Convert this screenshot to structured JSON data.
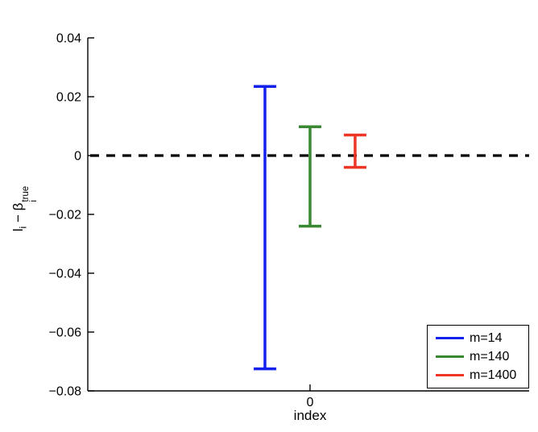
{
  "figure": {
    "background": "#ffffff",
    "axis_color": "#000000",
    "xlabel": "index",
    "ylabel_parts": {
      "lhs_base": "l",
      "lhs_sub": "i",
      "minus": " − ",
      "rhs_base": "β",
      "rhs_sup": "true",
      "rhs_sub": "i"
    }
  },
  "chart_data": {
    "type": "errorbar",
    "title": "",
    "xlabel": "index",
    "ylabel": "l_i − β_i^true",
    "xlim": [
      -0.493,
      0.486
    ],
    "ylim": [
      -0.08,
      0.04
    ],
    "grid": false,
    "yticks": {
      "values": [
        0.04,
        0.02,
        0,
        -0.02,
        -0.04,
        -0.06,
        -0.08
      ],
      "labels": [
        "0.04",
        "0.02",
        "0",
        "−0.02",
        "−0.04",
        "−0.06",
        "−0.08"
      ]
    },
    "xticks": {
      "values": [
        0
      ],
      "labels": [
        "0"
      ]
    },
    "zero_line": {
      "y": 0,
      "style": "dashed",
      "color": "#000000"
    },
    "legend_position": "lower right",
    "series": [
      {
        "name": "m=14",
        "color": "#1420ec",
        "x": -0.1,
        "high": 0.0235,
        "low": -0.0725
      },
      {
        "name": "m=140",
        "color": "#388932",
        "x": 0.0,
        "high": 0.0098,
        "low": -0.024
      },
      {
        "name": "m=1400",
        "color": "#ee3626",
        "x": 0.1,
        "high": 0.007,
        "low": -0.004
      }
    ]
  }
}
